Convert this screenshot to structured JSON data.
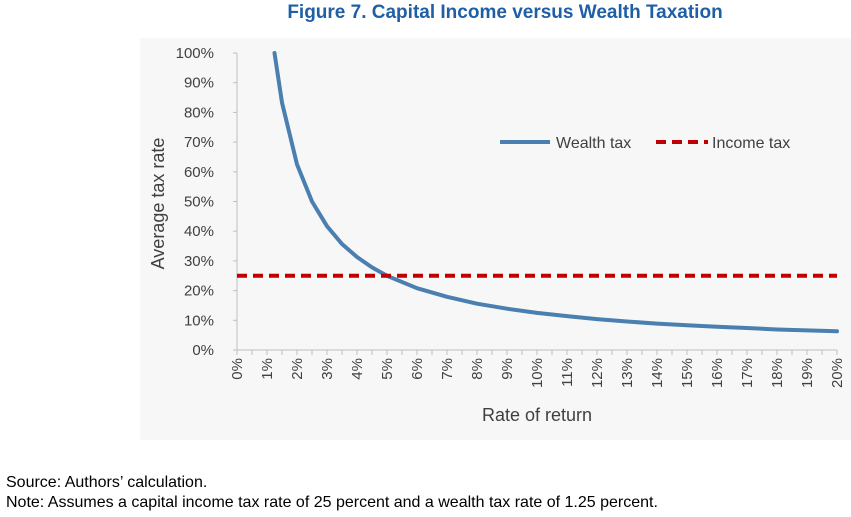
{
  "figure": {
    "title": "Figure 7. Capital Income versus Wealth Taxation",
    "source": "Source: Authors’ calculation.",
    "note": "Note: Assumes a capital income tax rate of 25 percent and a wealth tax rate of 1.25 percent."
  },
  "colors": {
    "wealth_tax": "#4a7fb0",
    "income_tax": "#c00000",
    "title": "#1f5fa6"
  },
  "chart_data": {
    "type": "line",
    "title": "Figure 7. Capital Income versus Wealth Taxation",
    "xlabel": "Rate of return",
    "ylabel": "Average tax rate",
    "x_ticks": [
      "0%",
      "1%",
      "2%",
      "3%",
      "4%",
      "5%",
      "6%",
      "7%",
      "8%",
      "9%",
      "10%",
      "11%",
      "12%",
      "13%",
      "14%",
      "15%",
      "16%",
      "17%",
      "18%",
      "19%",
      "20%"
    ],
    "y_ticks": [
      "0%",
      "10%",
      "20%",
      "30%",
      "40%",
      "50%",
      "60%",
      "70%",
      "80%",
      "90%",
      "100%"
    ],
    "xlim": [
      0,
      20
    ],
    "ylim": [
      0,
      100
    ],
    "grid": false,
    "legend": "top-right",
    "series": [
      {
        "name": "Wealth tax",
        "style": "solid",
        "x": [
          1.25,
          1.5,
          2,
          2.5,
          3,
          3.5,
          4,
          4.5,
          5,
          6,
          7,
          8,
          9,
          10,
          11,
          12,
          13,
          14,
          15,
          16,
          17,
          18,
          19,
          20
        ],
        "y": [
          100,
          83.3,
          62.5,
          50,
          41.7,
          35.7,
          31.3,
          27.8,
          25,
          20.8,
          17.9,
          15.6,
          13.9,
          12.5,
          11.4,
          10.4,
          9.6,
          8.9,
          8.3,
          7.8,
          7.4,
          6.9,
          6.6,
          6.3
        ]
      },
      {
        "name": "Income tax",
        "style": "dashed",
        "x": [
          0,
          20
        ],
        "y": [
          25,
          25
        ]
      }
    ]
  }
}
